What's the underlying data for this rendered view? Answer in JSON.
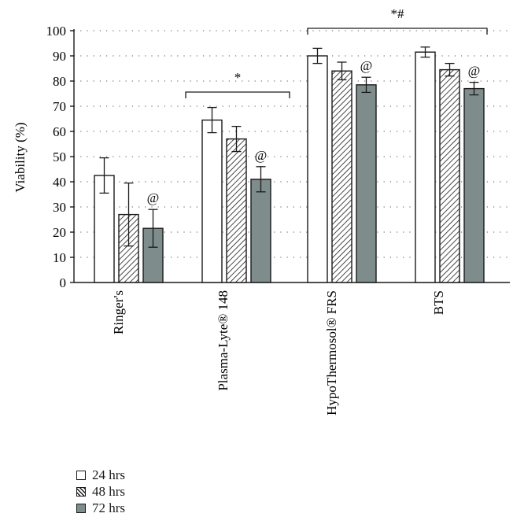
{
  "chart_data": {
    "type": "bar",
    "ylabel": "Viability (%)",
    "ylim": [
      0,
      100
    ],
    "yticks": [
      0,
      10,
      20,
      30,
      40,
      50,
      60,
      70,
      80,
      90,
      100
    ],
    "grid": "horizontal dotted",
    "categories": [
      "Ringer's",
      "Plasma-Lyte® 148",
      "HypoThermosol® FRS",
      "BTS"
    ],
    "series": [
      {
        "name": "24 hrs",
        "pattern": "white",
        "values": [
          42.5,
          64.5,
          90,
          91.5
        ],
        "errors": [
          7,
          5,
          3,
          2
        ]
      },
      {
        "name": "48 hrs",
        "pattern": "hatched",
        "values": [
          27,
          57,
          84,
          84.5
        ],
        "errors": [
          12.5,
          5,
          3.5,
          2.5
        ]
      },
      {
        "name": "72 hrs",
        "pattern": "gray",
        "values": [
          21.5,
          41,
          78.5,
          77
        ],
        "errors": [
          7.5,
          5,
          3,
          2.5
        ]
      }
    ],
    "colors": {
      "gray_fill": "#7f8c8c",
      "edge": "#1a1a1a",
      "white_fill": "#ffffff"
    },
    "annotations": {
      "at_marks": [
        {
          "category": 0,
          "series": 2,
          "text": "@"
        },
        {
          "category": 1,
          "series": 2,
          "text": "@"
        },
        {
          "category": 2,
          "series": 2,
          "text": "@"
        },
        {
          "category": 3,
          "series": 2,
          "text": "@"
        }
      ],
      "brackets": [
        {
          "from_category": 1,
          "to_category": 1,
          "text": "*"
        },
        {
          "from_category": 2,
          "to_category": 3,
          "text": "*#"
        }
      ]
    },
    "legend_position": "bottom-left"
  }
}
